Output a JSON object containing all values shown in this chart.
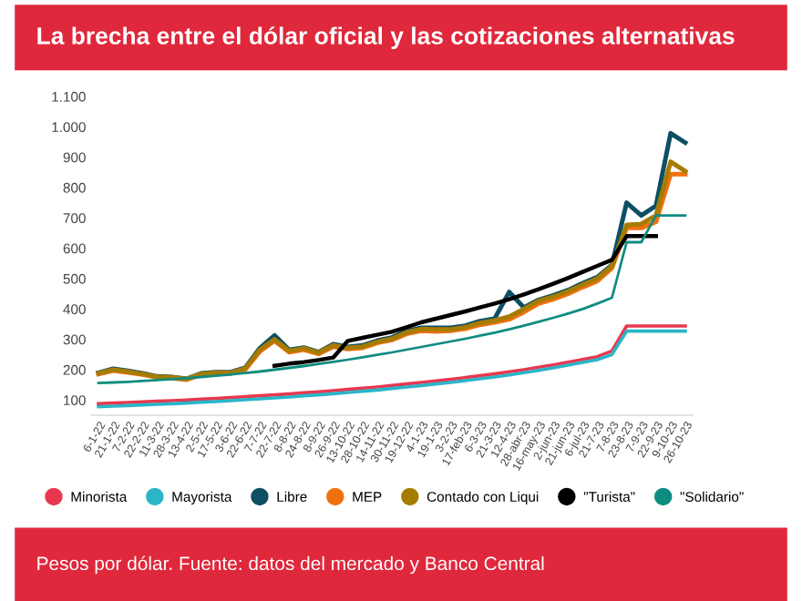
{
  "chart_data": {
    "type": "line",
    "title": "La brecha entre el dólar oficial y las cotizaciones alternativas",
    "annotations": [
      "Pesos por dólar. Fuente: datos del mercado y Banco Central"
    ],
    "categories": [
      "6-1-22",
      "21-1-22",
      "7-2-22",
      "22-2-22",
      "11-3-22",
      "28-3-22",
      "13-4-22",
      "2-5-22",
      "17-5-22",
      "3-6-22",
      "22-6-22",
      "7-7-22",
      "22-7-22",
      "8-8-22",
      "24-8-22",
      "8-9-22",
      "26-9-22",
      "13-10-22",
      "28-10-22",
      "14-11-22",
      "30-11-22",
      "19-12-22",
      "4-1-23",
      "19-1-23",
      "3-2-23",
      "17-feb-23",
      "6-3-23",
      "21-3-23",
      "12-4-23",
      "28-abr-23",
      "16-may-23",
      "2-jun-23",
      "21-jun-23",
      "6-jul-23",
      "21-7-23",
      "7-8-23",
      "23-8-23",
      "7-9-23",
      "22-9-23",
      "9-10-23",
      "26-10-23"
    ],
    "series": [
      {
        "name": "Minorista",
        "color": "#e8384f",
        "values": [
          88,
          90,
          92,
          94,
          96,
          98,
          100,
          103,
          105,
          108,
          111,
          114,
          117,
          120,
          124,
          127,
          131,
          135,
          139,
          143,
          148,
          153,
          158,
          163,
          168,
          174,
          180,
          186,
          193,
          200,
          208,
          216,
          225,
          234,
          243,
          262,
          344,
          344,
          344,
          344,
          344
        ]
      },
      {
        "name": "Mayorista",
        "color": "#2bb5c8",
        "values": [
          78,
          80,
          82,
          84,
          86,
          88,
          90,
          93,
          95,
          98,
          101,
          104,
          107,
          110,
          114,
          117,
          121,
          125,
          129,
          133,
          138,
          143,
          148,
          153,
          158,
          164,
          170,
          176,
          183,
          190,
          198,
          206,
          215,
          224,
          233,
          250,
          327,
          327,
          327,
          327,
          327
        ]
      },
      {
        "name": "Libre",
        "color": "#0d4f63",
        "values": [
          190,
          203,
          196,
          188,
          178,
          176,
          170,
          188,
          192,
          192,
          206,
          271,
          313,
          265,
          273,
          258,
          284,
          275,
          280,
          296,
          306,
          327,
          338,
          338,
          338,
          345,
          360,
          368,
          456,
          405,
          430,
          445,
          462,
          485,
          505,
          545,
          750,
          708,
          740,
          979,
          948
        ]
      },
      {
        "name": "MEP",
        "color": "#f07010",
        "values": [
          186,
          197,
          191,
          184,
          175,
          172,
          167,
          183,
          187,
          188,
          200,
          260,
          295,
          258,
          266,
          252,
          276,
          268,
          272,
          288,
          298,
          318,
          328,
          326,
          328,
          335,
          348,
          356,
          366,
          390,
          418,
          432,
          450,
          472,
          492,
          535,
          667,
          667,
          687,
          844,
          844
        ]
      },
      {
        "name": "Contado con Liqui",
        "color": "#a67c00",
        "values": [
          188,
          200,
          194,
          186,
          177,
          175,
          169,
          186,
          190,
          190,
          204,
          266,
          300,
          262,
          271,
          256,
          280,
          272,
          276,
          292,
          302,
          323,
          334,
          333,
          333,
          340,
          354,
          362,
          375,
          400,
          427,
          440,
          458,
          480,
          500,
          542,
          677,
          680,
          708,
          885,
          854
        ]
      },
      {
        "name": "\"Turista\"",
        "color": "#000000",
        "values": [
          null,
          null,
          null,
          null,
          null,
          null,
          null,
          null,
          null,
          null,
          null,
          null,
          213,
          220,
          225,
          232,
          240,
          295,
          305,
          315,
          325,
          340,
          356,
          368,
          380,
          392,
          405,
          418,
          432,
          448,
          465,
          483,
          502,
          522,
          542,
          562,
          640,
          640,
          640,
          null,
          null
        ]
      },
      {
        "name": "\"Solidario\"",
        "color": "#0f8c80",
        "values": [
          156,
          158,
          160,
          163,
          166,
          169,
          172,
          176,
          180,
          184,
          189,
          194,
          200,
          206,
          212,
          219,
          226,
          233,
          241,
          249,
          257,
          266,
          275,
          284,
          293,
          302,
          312,
          322,
          333,
          345,
          358,
          371,
          385,
          400,
          418,
          437,
          620,
          620,
          708,
          708,
          708
        ]
      }
    ],
    "ylim": [
      50,
      1100
    ],
    "yticks": [
      100,
      200,
      300,
      400,
      500,
      600,
      700,
      800,
      900,
      {
        "value": 1000,
        "label": "1.000"
      },
      {
        "value": 1100,
        "label": "1.100"
      }
    ],
    "legend": "bottom"
  }
}
